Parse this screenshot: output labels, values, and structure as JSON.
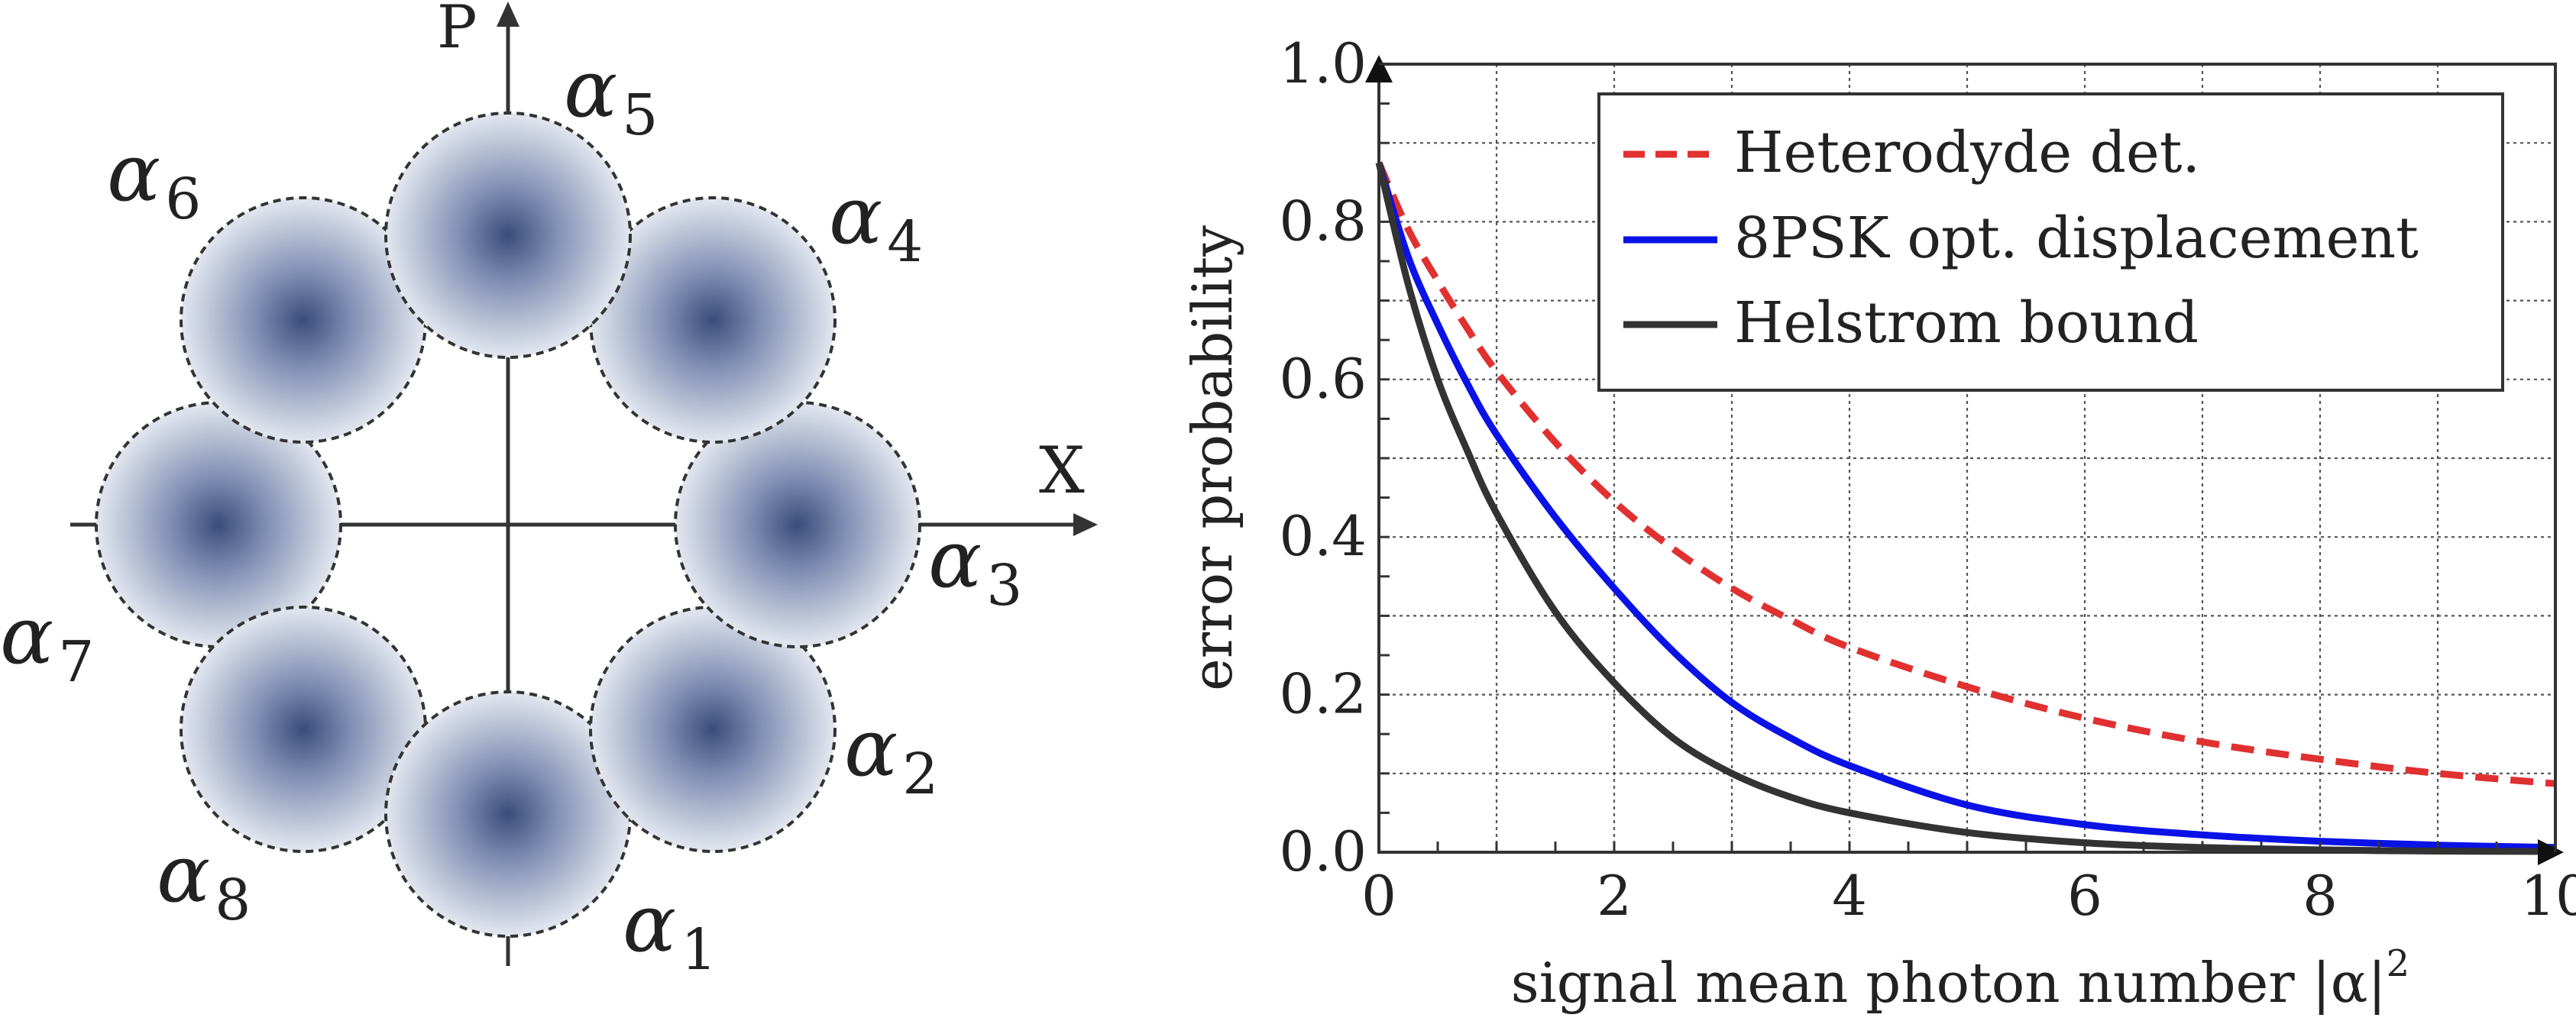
{
  "constellation": {
    "axis_x_label": "X",
    "axis_p_label": "P",
    "state_symbol": "α",
    "states": [
      {
        "label": "1",
        "angle_deg": 270
      },
      {
        "label": "2",
        "angle_deg": 315
      },
      {
        "label": "3",
        "angle_deg": 0
      },
      {
        "label": "4",
        "angle_deg": 45
      },
      {
        "label": "5",
        "angle_deg": 90
      },
      {
        "label": "6",
        "angle_deg": 135
      },
      {
        "label": "7",
        "angle_deg": 180
      },
      {
        "label": "8",
        "angle_deg": 225
      }
    ],
    "colors": {
      "center": "#3a4d7c",
      "edge": "#e3e7ef",
      "outline": "#333333"
    }
  },
  "chart_data": {
    "type": "line",
    "title": "",
    "xlabel": "signal mean photon number |α|",
    "xlabel_superscript": "2",
    "ylabel": "error probability",
    "xlim": [
      0,
      10
    ],
    "ylim": [
      0,
      1.0
    ],
    "xticks": [
      0,
      2,
      4,
      6,
      8,
      10
    ],
    "xtick_labels": [
      "0",
      "2",
      "4",
      "6",
      "8",
      "10"
    ],
    "yticks": [
      0.0,
      0.2,
      0.4,
      0.6,
      0.8,
      1.0
    ],
    "ytick_labels": [
      "0.0",
      "0.2",
      "0.4",
      "0.6",
      "0.8",
      "1.0"
    ],
    "grid": true,
    "legend_position": "top-right",
    "x": [
      0,
      0.25,
      0.5,
      0.75,
      1,
      1.5,
      2,
      2.5,
      3,
      3.5,
      4,
      5,
      6,
      7,
      8,
      9,
      10
    ],
    "series": [
      {
        "name": "Heterodyde det.",
        "color": "#e03030",
        "dash": "dashed",
        "values": [
          0.875,
          0.79,
          0.725,
          0.665,
          0.61,
          0.52,
          0.445,
          0.385,
          0.335,
          0.295,
          0.26,
          0.21,
          0.17,
          0.14,
          0.118,
          0.1,
          0.087
        ]
      },
      {
        "name": "8PSK opt. displacement",
        "color": "#0a12e6",
        "dash": "solid",
        "values": [
          0.875,
          0.755,
          0.67,
          0.595,
          0.53,
          0.425,
          0.335,
          0.255,
          0.19,
          0.145,
          0.11,
          0.06,
          0.035,
          0.022,
          0.014,
          0.009,
          0.006
        ]
      },
      {
        "name": "Helstrom bound",
        "color": "#333333",
        "dash": "solid",
        "values": [
          0.875,
          0.72,
          0.6,
          0.51,
          0.43,
          0.305,
          0.215,
          0.145,
          0.1,
          0.07,
          0.05,
          0.025,
          0.012,
          0.006,
          0.003,
          0.0015,
          0.001
        ]
      }
    ]
  }
}
